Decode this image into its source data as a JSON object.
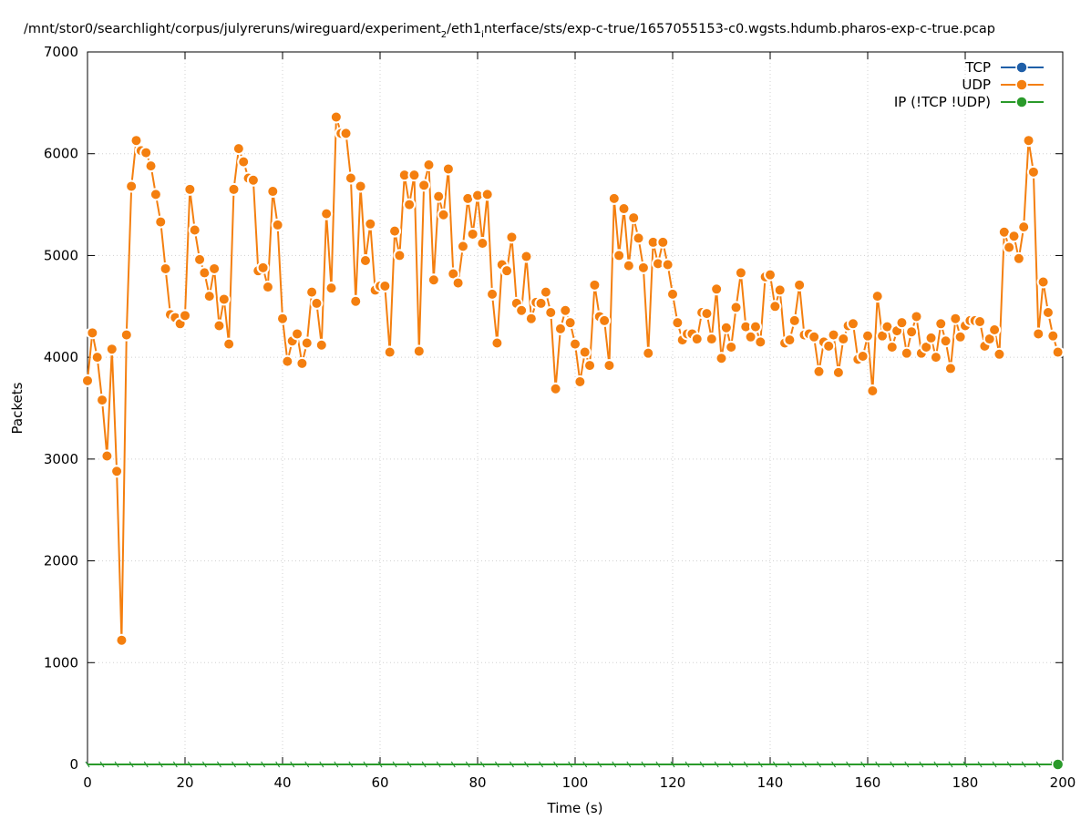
{
  "chart_data": {
    "type": "line",
    "title": "/mnt/stor0/searchlight/corpus/julyreruns/wireguard/experiment_2/eth1_interface/sts/exp-c-true/1657055153-c0.wgsts.hdumb.pharos-exp-c-true.pcap",
    "xlabel": "Time (s)",
    "ylabel": "Packets",
    "xlim": [
      0,
      200
    ],
    "ylim": [
      0,
      7000
    ],
    "x_ticks": [
      0,
      20,
      40,
      60,
      80,
      100,
      120,
      140,
      160,
      180,
      200
    ],
    "y_ticks": [
      0,
      1000,
      2000,
      3000,
      4000,
      5000,
      6000,
      7000
    ],
    "grid": true,
    "legend_position": "top-right",
    "series": [
      {
        "name": "TCP",
        "color": "#1f5fa8",
        "x": [
          0,
          199
        ],
        "y": [
          0,
          0
        ],
        "markers": "last"
      },
      {
        "name": "UDP",
        "color": "#f47f0f",
        "x": [
          0,
          1,
          2,
          3,
          4,
          5,
          6,
          7,
          8,
          9,
          10,
          11,
          12,
          13,
          14,
          15,
          16,
          17,
          18,
          19,
          20,
          21,
          22,
          23,
          24,
          25,
          26,
          27,
          28,
          29,
          30,
          31,
          32,
          33,
          34,
          35,
          36,
          37,
          38,
          39,
          40,
          41,
          42,
          43,
          44,
          45,
          46,
          47,
          48,
          49,
          50,
          51,
          52,
          53,
          54,
          55,
          56,
          57,
          58,
          59,
          60,
          61,
          62,
          63,
          64,
          65,
          66,
          67,
          68,
          69,
          70,
          71,
          72,
          73,
          74,
          75,
          76,
          77,
          78,
          79,
          80,
          81,
          82,
          83,
          84,
          85,
          86,
          87,
          88,
          89,
          90,
          91,
          92,
          93,
          94,
          95,
          96,
          97,
          98,
          99,
          100,
          101,
          102,
          103,
          104,
          105,
          106,
          107,
          108,
          109,
          110,
          111,
          112,
          113,
          114,
          115,
          116,
          117,
          118,
          119,
          120,
          121,
          122,
          123,
          124,
          125,
          126,
          127,
          128,
          129,
          130,
          131,
          132,
          133,
          134,
          135,
          136,
          137,
          138,
          139,
          140,
          141,
          142,
          143,
          144,
          145,
          146,
          147,
          148,
          149,
          150,
          151,
          152,
          153,
          154,
          155,
          156,
          157,
          158,
          159,
          160,
          161,
          162,
          163,
          164,
          165,
          166,
          167,
          168,
          169,
          170,
          171,
          172,
          173,
          174,
          175,
          176,
          177,
          178,
          179,
          180,
          181,
          182,
          183,
          184,
          185,
          186,
          187,
          188,
          189,
          190,
          191,
          192,
          193,
          194,
          195,
          196,
          197,
          198,
          199
        ],
        "y": [
          3770,
          4240,
          4000,
          3580,
          3030,
          4080,
          2880,
          1220,
          4220,
          5680,
          6130,
          6030,
          6010,
          5880,
          5600,
          5330,
          4870,
          4420,
          4390,
          4330,
          4410,
          5650,
          5250,
          4960,
          4830,
          4600,
          4870,
          4310,
          4570,
          4130,
          5650,
          6050,
          5920,
          5760,
          5740,
          4850,
          4880,
          4690,
          5630,
          5300,
          4380,
          3960,
          4160,
          4230,
          3940,
          4140,
          4640,
          4530,
          4120,
          5410,
          4680,
          6360,
          6200,
          6200,
          5760,
          4550,
          5680,
          4950,
          5310,
          4660,
          4700,
          4700,
          4050,
          5240,
          5000,
          5790,
          5500,
          5790,
          4060,
          5690,
          5890,
          4760,
          5580,
          5400,
          5850,
          4820,
          4730,
          5090,
          5560,
          5210,
          5590,
          5120,
          5600,
          4620,
          4140,
          4910,
          4850,
          5180,
          4530,
          4460,
          4990,
          4380,
          4540,
          4530,
          4640,
          4440,
          3690,
          4280,
          4460,
          4340,
          4130,
          3760,
          4050,
          3920,
          4710,
          4400,
          4360,
          3920,
          5560,
          5000,
          5460,
          4900,
          5370,
          5170,
          4880,
          4040,
          5130,
          4920,
          5130,
          4910,
          4620,
          4340,
          4170,
          4230,
          4230,
          4180,
          4440,
          4430,
          4180,
          4670,
          3990,
          4290,
          4100,
          4490,
          4830,
          4300,
          4200,
          4300,
          4150,
          4790,
          4810,
          4500,
          4660,
          4140,
          4170,
          4360,
          4710,
          4220,
          4230,
          4200,
          3860,
          4150,
          4110,
          4220,
          3850,
          4180,
          4310,
          4330,
          3980,
          4010,
          4210,
          3670,
          4600,
          4210,
          4300,
          4100,
          4260,
          4340,
          4040,
          4250,
          4400,
          4040,
          4100,
          4190,
          4000,
          4330,
          4160,
          3890,
          4380,
          4200,
          4310,
          4360,
          4360,
          4350,
          4110,
          4180,
          4270,
          4030,
          5230,
          5080,
          5190,
          4970,
          5280,
          6130,
          5820,
          4230,
          4740,
          4440,
          4210,
          4050
        ]
      },
      {
        "name": "IP (!TCP  !UDP)",
        "color": "#2a9a2a",
        "x": [
          0,
          199
        ],
        "y": [
          0,
          0
        ],
        "markers": "last"
      }
    ]
  }
}
